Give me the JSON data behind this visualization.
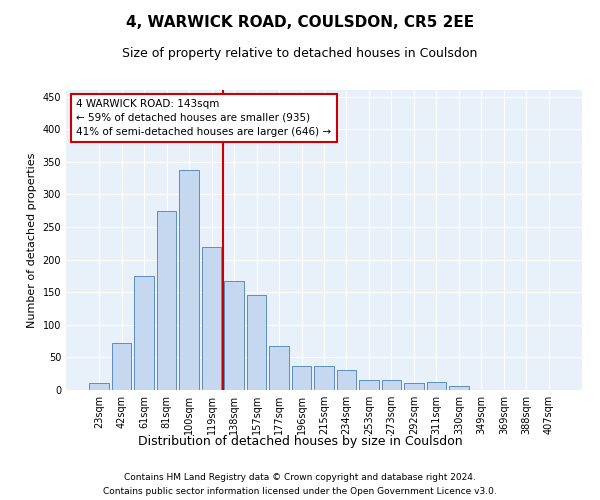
{
  "title1": "4, WARWICK ROAD, COULSDON, CR5 2EE",
  "title2": "Size of property relative to detached houses in Coulsdon",
  "xlabel": "Distribution of detached houses by size in Coulsdon",
  "ylabel": "Number of detached properties",
  "categories": [
    "23sqm",
    "42sqm",
    "61sqm",
    "81sqm",
    "100sqm",
    "119sqm",
    "138sqm",
    "157sqm",
    "177sqm",
    "196sqm",
    "215sqm",
    "234sqm",
    "253sqm",
    "273sqm",
    "292sqm",
    "311sqm",
    "330sqm",
    "349sqm",
    "369sqm",
    "388sqm",
    "407sqm"
  ],
  "values": [
    10,
    72,
    175,
    275,
    338,
    220,
    167,
    145,
    68,
    37,
    37,
    30,
    15,
    16,
    10,
    12,
    6,
    0,
    0,
    0,
    0
  ],
  "bar_color": "#c5d8f0",
  "bar_edge_color": "#5a8fc0",
  "vline_x": 5.5,
  "vline_color": "#cc0000",
  "annotation_text1": "4 WARWICK ROAD: 143sqm",
  "annotation_text2": "← 59% of detached houses are smaller (935)",
  "annotation_text3": "41% of semi-detached houses are larger (646) →",
  "annotation_box_color": "#ffffff",
  "annotation_box_edge": "#cc0000",
  "footer1": "Contains HM Land Registry data © Crown copyright and database right 2024.",
  "footer2": "Contains public sector information licensed under the Open Government Licence v3.0.",
  "bg_color": "#e8f0fa",
  "ylim": [
    0,
    460
  ],
  "yticks": [
    0,
    50,
    100,
    150,
    200,
    250,
    300,
    350,
    400,
    450
  ],
  "title1_fontsize": 11,
  "title2_fontsize": 9,
  "xlabel_fontsize": 9,
  "ylabel_fontsize": 8,
  "tick_fontsize": 7,
  "footer_fontsize": 6.5
}
